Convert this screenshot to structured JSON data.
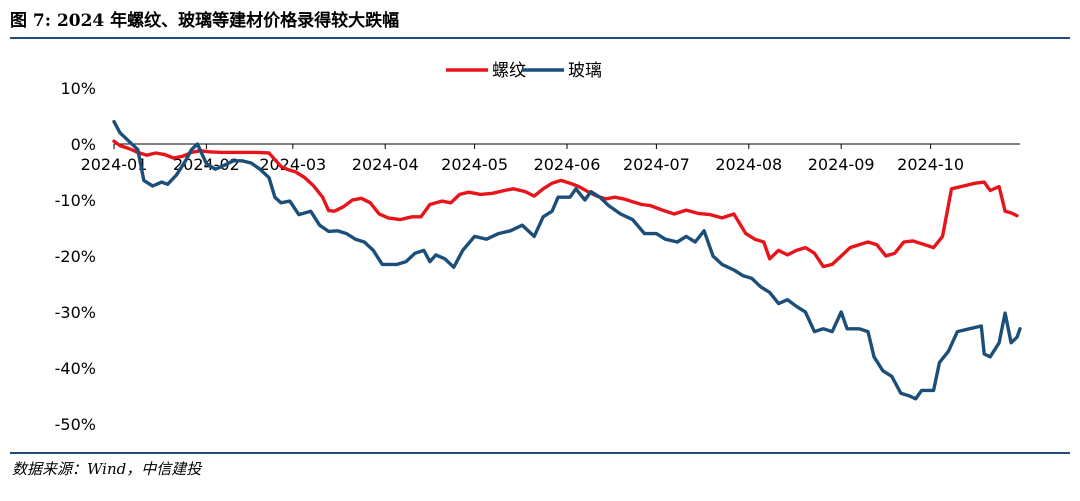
{
  "figure": {
    "title": "图 7: 2024 年螺纹、玻璃等建材价格录得较大跌幅",
    "source": "数据来源：Wind，中信建投"
  },
  "chart_data": {
    "type": "line",
    "title": "",
    "xlabel": "",
    "ylabel": "",
    "ylim": [
      -50,
      10
    ],
    "yticks": [
      10,
      0,
      -10,
      -20,
      -30,
      -40,
      -50
    ],
    "ytick_labels": [
      "10%",
      "0%",
      "-10%",
      "-20%",
      "-30%",
      "-40%",
      "-50%"
    ],
    "xlim": [
      "2024-01-01",
      "2024-10-31"
    ],
    "xticks": [
      "2024-01-01",
      "2024-02-01",
      "2024-03-01",
      "2024-04-01",
      "2024-05-01",
      "2024-06-01",
      "2024-07-01",
      "2024-08-01",
      "2024-09-01",
      "2024-10-01"
    ],
    "xtick_labels": [
      "2024-01",
      "2024-02",
      "2024-03",
      "2024-04",
      "2024-05",
      "2024-06",
      "2024-07",
      "2024-08",
      "2024-09",
      "2024-10"
    ],
    "grid": false,
    "legend_position": "top-center",
    "series": [
      {
        "name": "螺纹",
        "color": "#e8141b",
        "points": [
          [
            "2024-01-01",
            0.5
          ],
          [
            "2024-01-03",
            -0.3
          ],
          [
            "2024-01-06",
            -0.8
          ],
          [
            "2024-01-09",
            -1.5
          ],
          [
            "2024-01-12",
            -2.0
          ],
          [
            "2024-01-15",
            -1.6
          ],
          [
            "2024-01-18",
            -1.9
          ],
          [
            "2024-01-21",
            -2.5
          ],
          [
            "2024-01-24",
            -2.2
          ],
          [
            "2024-01-27",
            -1.5
          ],
          [
            "2024-01-30",
            -1.2
          ],
          [
            "2024-02-02",
            -1.4
          ],
          [
            "2024-02-06",
            -1.5
          ],
          [
            "2024-02-12",
            -1.5
          ],
          [
            "2024-02-18",
            -1.5
          ],
          [
            "2024-02-22",
            -1.6
          ],
          [
            "2024-02-26",
            -4.0
          ],
          [
            "2024-02-28",
            -4.5
          ],
          [
            "2024-03-02",
            -5.0
          ],
          [
            "2024-03-05",
            -6.0
          ],
          [
            "2024-03-08",
            -7.5
          ],
          [
            "2024-03-11",
            -9.5
          ],
          [
            "2024-03-13",
            -11.9
          ],
          [
            "2024-03-15",
            -12.0
          ],
          [
            "2024-03-18",
            -11.2
          ],
          [
            "2024-03-21",
            -10.0
          ],
          [
            "2024-03-24",
            -9.7
          ],
          [
            "2024-03-27",
            -10.5
          ],
          [
            "2024-03-30",
            -12.5
          ],
          [
            "2024-04-02",
            -13.2
          ],
          [
            "2024-04-06",
            -13.5
          ],
          [
            "2024-04-10",
            -13.0
          ],
          [
            "2024-04-13",
            -13.0
          ],
          [
            "2024-04-16",
            -10.8
          ],
          [
            "2024-04-20",
            -10.2
          ],
          [
            "2024-04-23",
            -10.5
          ],
          [
            "2024-04-26",
            -9.0
          ],
          [
            "2024-04-29",
            -8.6
          ],
          [
            "2024-05-03",
            -9.0
          ],
          [
            "2024-05-07",
            -8.8
          ],
          [
            "2024-05-11",
            -8.3
          ],
          [
            "2024-05-14",
            -8.0
          ],
          [
            "2024-05-18",
            -8.5
          ],
          [
            "2024-05-21",
            -9.3
          ],
          [
            "2024-05-24",
            -8.0
          ],
          [
            "2024-05-27",
            -7.0
          ],
          [
            "2024-05-30",
            -6.5
          ],
          [
            "2024-06-02",
            -7.0
          ],
          [
            "2024-06-05",
            -7.6
          ],
          [
            "2024-06-08",
            -8.5
          ],
          [
            "2024-06-11",
            -9.3
          ],
          [
            "2024-06-14",
            -9.8
          ],
          [
            "2024-06-17",
            -9.5
          ],
          [
            "2024-06-20",
            -9.8
          ],
          [
            "2024-06-23",
            -10.3
          ],
          [
            "2024-06-26",
            -10.8
          ],
          [
            "2024-06-29",
            -11.0
          ],
          [
            "2024-07-03",
            -11.8
          ],
          [
            "2024-07-07",
            -12.5
          ],
          [
            "2024-07-11",
            -11.8
          ],
          [
            "2024-07-15",
            -12.4
          ],
          [
            "2024-07-19",
            -12.6
          ],
          [
            "2024-07-23",
            -13.2
          ],
          [
            "2024-07-27",
            -12.5
          ],
          [
            "2024-07-31",
            -16.0
          ],
          [
            "2024-08-03",
            -17.0
          ],
          [
            "2024-08-06",
            -17.5
          ],
          [
            "2024-08-08",
            -20.5
          ],
          [
            "2024-08-11",
            -19.0
          ],
          [
            "2024-08-14",
            -19.8
          ],
          [
            "2024-08-17",
            -19.0
          ],
          [
            "2024-08-20",
            -18.5
          ],
          [
            "2024-08-23",
            -19.5
          ],
          [
            "2024-08-26",
            -21.9
          ],
          [
            "2024-08-29",
            -21.5
          ],
          [
            "2024-09-01",
            -20.0
          ],
          [
            "2024-09-04",
            -18.5
          ],
          [
            "2024-09-07",
            -18.0
          ],
          [
            "2024-09-10",
            -17.5
          ],
          [
            "2024-09-13",
            -18.0
          ],
          [
            "2024-09-16",
            -20.0
          ],
          [
            "2024-09-19",
            -19.5
          ],
          [
            "2024-09-22",
            -17.5
          ],
          [
            "2024-09-25",
            -17.3
          ],
          [
            "2024-09-28",
            -17.8
          ],
          [
            "2024-10-02",
            -18.5
          ],
          [
            "2024-10-05",
            -16.5
          ],
          [
            "2024-10-08",
            -8.0
          ],
          [
            "2024-10-12",
            -7.5
          ],
          [
            "2024-10-16",
            -7.0
          ],
          [
            "2024-10-19",
            -6.8
          ],
          [
            "2024-10-21",
            -8.3
          ],
          [
            "2024-10-24",
            -7.6
          ],
          [
            "2024-10-26",
            -12.0
          ],
          [
            "2024-10-28",
            -12.3
          ],
          [
            "2024-10-30",
            -12.8
          ]
        ]
      },
      {
        "name": "玻璃",
        "color": "#1b4f7a",
        "points": [
          [
            "2024-01-01",
            4.0
          ],
          [
            "2024-01-03",
            2.0
          ],
          [
            "2024-01-06",
            0.5
          ],
          [
            "2024-01-09",
            -1.0
          ],
          [
            "2024-01-11",
            -6.5
          ],
          [
            "2024-01-14",
            -7.5
          ],
          [
            "2024-01-17",
            -6.8
          ],
          [
            "2024-01-19",
            -7.2
          ],
          [
            "2024-01-22",
            -5.5
          ],
          [
            "2024-01-25",
            -3.0
          ],
          [
            "2024-01-27",
            -1.0
          ],
          [
            "2024-01-29",
            0.0
          ],
          [
            "2024-02-01",
            -3.5
          ],
          [
            "2024-02-04",
            -4.5
          ],
          [
            "2024-02-07",
            -3.8
          ],
          [
            "2024-02-10",
            -3.0
          ],
          [
            "2024-02-13",
            -3.0
          ],
          [
            "2024-02-16",
            -3.4
          ],
          [
            "2024-02-19",
            -4.5
          ],
          [
            "2024-02-22",
            -6.0
          ],
          [
            "2024-02-24",
            -9.5
          ],
          [
            "2024-02-26",
            -10.5
          ],
          [
            "2024-02-29",
            -10.2
          ],
          [
            "2024-03-03",
            -12.6
          ],
          [
            "2024-03-07",
            -12.0
          ],
          [
            "2024-03-10",
            -14.5
          ],
          [
            "2024-03-13",
            -15.6
          ],
          [
            "2024-03-16",
            -15.5
          ],
          [
            "2024-03-19",
            -16.0
          ],
          [
            "2024-03-22",
            -17.0
          ],
          [
            "2024-03-25",
            -17.5
          ],
          [
            "2024-03-28",
            -19.0
          ],
          [
            "2024-03-31",
            -21.5
          ],
          [
            "2024-04-05",
            -21.5
          ],
          [
            "2024-04-08",
            -21.0
          ],
          [
            "2024-04-11",
            -19.5
          ],
          [
            "2024-04-14",
            -19.0
          ],
          [
            "2024-04-16",
            -21.0
          ],
          [
            "2024-04-18",
            -19.8
          ],
          [
            "2024-04-21",
            -20.5
          ],
          [
            "2024-04-24",
            -22.0
          ],
          [
            "2024-04-27",
            -19.0
          ],
          [
            "2024-05-01",
            -16.5
          ],
          [
            "2024-05-05",
            -17.0
          ],
          [
            "2024-05-09",
            -16.0
          ],
          [
            "2024-05-13",
            -15.5
          ],
          [
            "2024-05-17",
            -14.5
          ],
          [
            "2024-05-21",
            -16.5
          ],
          [
            "2024-05-24",
            -13.0
          ],
          [
            "2024-05-27",
            -12.0
          ],
          [
            "2024-05-29",
            -9.5
          ],
          [
            "2024-06-02",
            -9.5
          ],
          [
            "2024-06-04",
            -8.0
          ],
          [
            "2024-06-07",
            -10.0
          ],
          [
            "2024-06-09",
            -8.5
          ],
          [
            "2024-06-12",
            -9.5
          ],
          [
            "2024-06-15",
            -11.0
          ],
          [
            "2024-06-19",
            -12.5
          ],
          [
            "2024-06-23",
            -13.5
          ],
          [
            "2024-06-27",
            -16.0
          ],
          [
            "2024-07-01",
            -16.0
          ],
          [
            "2024-07-04",
            -17.0
          ],
          [
            "2024-07-08",
            -17.5
          ],
          [
            "2024-07-11",
            -16.5
          ],
          [
            "2024-07-14",
            -17.5
          ],
          [
            "2024-07-17",
            -15.5
          ],
          [
            "2024-07-20",
            -20.0
          ],
          [
            "2024-07-23",
            -21.5
          ],
          [
            "2024-07-27",
            -22.5
          ],
          [
            "2024-07-30",
            -23.5
          ],
          [
            "2024-08-02",
            -24.0
          ],
          [
            "2024-08-05",
            -25.5
          ],
          [
            "2024-08-08",
            -26.5
          ],
          [
            "2024-08-11",
            -28.5
          ],
          [
            "2024-08-14",
            -27.8
          ],
          [
            "2024-08-17",
            -29.0
          ],
          [
            "2024-08-20",
            -30.0
          ],
          [
            "2024-08-23",
            -33.5
          ],
          [
            "2024-08-26",
            -33.0
          ],
          [
            "2024-08-29",
            -33.5
          ],
          [
            "2024-09-01",
            -30.0
          ],
          [
            "2024-09-03",
            -33.0
          ],
          [
            "2024-09-07",
            -33.0
          ],
          [
            "2024-09-10",
            -33.5
          ],
          [
            "2024-09-12",
            -38.0
          ],
          [
            "2024-09-15",
            -40.5
          ],
          [
            "2024-09-18",
            -41.5
          ],
          [
            "2024-09-21",
            -44.5
          ],
          [
            "2024-09-24",
            -45.0
          ],
          [
            "2024-09-26",
            -45.5
          ],
          [
            "2024-09-28",
            -44.0
          ],
          [
            "2024-10-02",
            -44.0
          ],
          [
            "2024-10-04",
            -39.0
          ],
          [
            "2024-10-07",
            -37.0
          ],
          [
            "2024-10-10",
            -33.5
          ],
          [
            "2024-10-14",
            -33.0
          ],
          [
            "2024-10-18",
            -32.5
          ],
          [
            "2024-10-19",
            -37.5
          ],
          [
            "2024-10-21",
            -38.0
          ],
          [
            "2024-10-24",
            -35.5
          ],
          [
            "2024-10-26",
            -30.2
          ],
          [
            "2024-10-28",
            -35.5
          ],
          [
            "2024-10-30",
            -34.5
          ],
          [
            "2024-10-31",
            -33.0
          ]
        ]
      }
    ]
  }
}
